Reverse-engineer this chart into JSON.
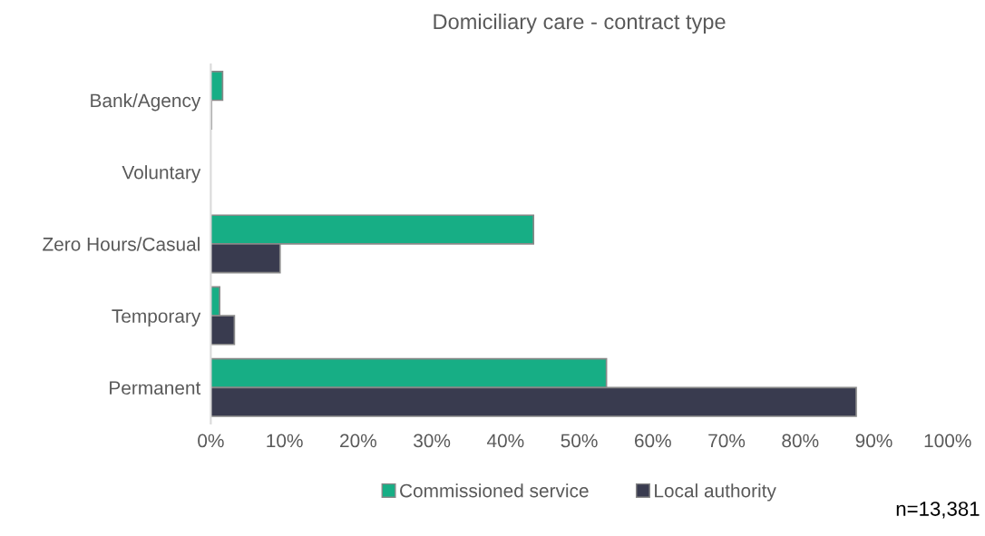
{
  "chart_data": {
    "type": "bar",
    "orientation": "horizontal",
    "title": "Domiciliary care - contract type",
    "categories": [
      "Bank/Agency",
      "Voluntary",
      "Zero Hours/Casual",
      "Temporary",
      "Permanent"
    ],
    "series": [
      {
        "name": "Commissioned service",
        "color": "#17ae85",
        "values": [
          1.6,
          0,
          43.8,
          1.2,
          53.7
        ]
      },
      {
        "name": "Local authority",
        "color": "#393b4f",
        "values": [
          0.1,
          0,
          9.4,
          3.2,
          87.6
        ]
      }
    ],
    "xlim": [
      0,
      100
    ],
    "xticks": [
      {
        "value": 0,
        "label": "0%"
      },
      {
        "value": 10,
        "label": "10%"
      },
      {
        "value": 20,
        "label": "20%"
      },
      {
        "value": 30,
        "label": "30%"
      },
      {
        "value": 40,
        "label": "40%"
      },
      {
        "value": 50,
        "label": "50%"
      },
      {
        "value": 60,
        "label": "60%"
      },
      {
        "value": 70,
        "label": "70%"
      },
      {
        "value": 80,
        "label": "80%"
      },
      {
        "value": 90,
        "label": "90%"
      },
      {
        "value": 100,
        "label": "100%"
      }
    ],
    "grid": false,
    "legend": "bottom",
    "annotations": [
      "n=13,381"
    ]
  }
}
